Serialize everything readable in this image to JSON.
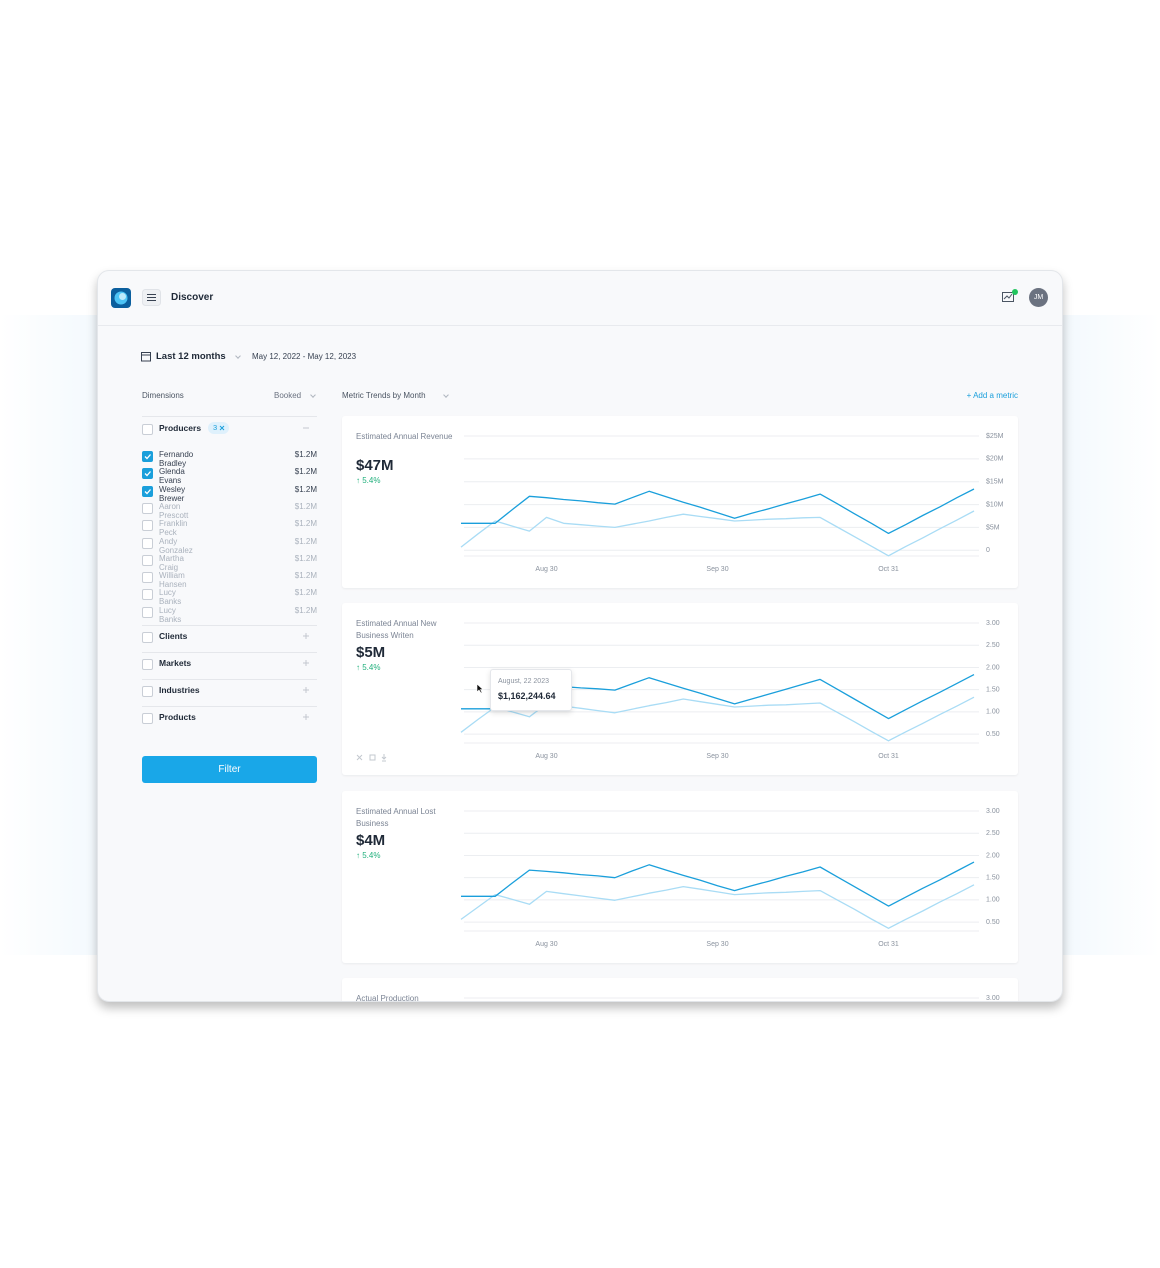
{
  "header": {
    "title": "Discover",
    "avatar": "JM"
  },
  "date_filter": {
    "period": "Last 12 months",
    "range": "May 12, 2022 - May 12, 2023"
  },
  "dimensions": {
    "title": "Dimensions",
    "measure": "Booked",
    "groups": [
      {
        "label": "Producers",
        "selected_count": 3,
        "expanded": true,
        "items": [
          {
            "label": "Fernando Bradley",
            "amount": "$1.2M",
            "checked": true
          },
          {
            "label": "Glenda Evans",
            "amount": "$1.2M",
            "checked": true
          },
          {
            "label": "Wesley Brewer",
            "amount": "$1.2M",
            "checked": true
          },
          {
            "label": "Aaron Prescott",
            "amount": "$1.2M",
            "checked": false
          },
          {
            "label": "Franklin Peck",
            "amount": "$1.2M",
            "checked": false
          },
          {
            "label": "Andy Gonzalez",
            "amount": "$1.2M",
            "checked": false
          },
          {
            "label": "Martha Craig",
            "amount": "$1.2M",
            "checked": false
          },
          {
            "label": "William Hansen",
            "amount": "$1.2M",
            "checked": false
          },
          {
            "label": "Lucy Banks",
            "amount": "$1.2M",
            "checked": false
          },
          {
            "label": "Lucy Banks",
            "amount": "$1.2M",
            "checked": false
          }
        ]
      },
      {
        "label": "Clients",
        "expanded": false
      },
      {
        "label": "Markets",
        "expanded": false
      },
      {
        "label": "Industries",
        "expanded": false
      },
      {
        "label": "Products",
        "expanded": false
      }
    ],
    "button": "Filter"
  },
  "metrics": {
    "title": "Metric Trends by Month",
    "add": "+ Add a metric"
  },
  "chart_data": [
    {
      "type": "line",
      "title": "Estimated Annual Revenue",
      "kpi": "$47M",
      "change": "↑ 5.4%",
      "categories": [
        null,
        null,
        null,
        null,
        null,
        "Aug 30",
        null,
        null,
        null,
        null,
        null,
        null,
        null,
        null,
        null,
        "Sep 30",
        null,
        null,
        null,
        null,
        null,
        null,
        null,
        null,
        null,
        "Oct 31",
        null,
        null,
        null,
        null,
        null
      ],
      "series": [
        {
          "color": "#1a9fdb",
          "values": [
            5.9,
            5.9,
            5.9,
            8.9,
            11.8,
            11.5,
            11.1,
            10.8,
            10.4,
            10.1,
            11.5,
            12.9,
            11.7,
            10.5,
            9.4,
            8.2,
            7.0,
            8.1,
            9.1,
            10.2,
            11.2,
            12.3,
            10.2,
            8.0,
            5.9,
            3.7,
            5.6,
            7.6,
            9.5,
            11.5,
            13.4
          ]
        },
        {
          "color": "#a9dcf5",
          "values": [
            0.7,
            3.6,
            6.4,
            5.3,
            4.2,
            7.2,
            5.9,
            5.6,
            5.3,
            5.0,
            5.7,
            6.4,
            7.2,
            7.9,
            7.4,
            6.9,
            6.4,
            6.6,
            6.8,
            6.9,
            7.1,
            7.2,
            5.1,
            3.0,
            0.9,
            -1.2,
            0.8,
            2.7,
            4.7,
            6.6,
            8.6
          ]
        }
      ],
      "ylim": [
        -1.25,
        25
      ],
      "yticks": [
        {
          "value": 25,
          "label": "$25M"
        },
        {
          "value": 20,
          "label": "$20M"
        },
        {
          "value": 15,
          "label": "$15M"
        },
        {
          "value": 10,
          "label": "$10M"
        },
        {
          "value": 5,
          "label": "$5M"
        },
        0
      ],
      "grid": true
    },
    {
      "type": "line",
      "title": "Estimated Annual New Business Writen",
      "kpi": "$5M",
      "change": "↑ 5.4%",
      "categories": [
        null,
        null,
        null,
        null,
        null,
        "Aug 30",
        null,
        null,
        null,
        null,
        null,
        null,
        null,
        null,
        null,
        "Sep 30",
        null,
        null,
        null,
        null,
        null,
        null,
        null,
        null,
        null,
        "Oct 31",
        null,
        null,
        null,
        null,
        null
      ],
      "series": [
        {
          "color": "#1a9fdb",
          "values": [
            1.07,
            1.07,
            1.07,
            1.35,
            1.62,
            1.59,
            1.57,
            1.54,
            1.52,
            1.49,
            1.63,
            1.77,
            1.65,
            1.53,
            1.42,
            1.3,
            1.18,
            1.29,
            1.4,
            1.51,
            1.62,
            1.73,
            1.51,
            1.29,
            1.07,
            0.85,
            1.05,
            1.25,
            1.44,
            1.64,
            1.84
          ]
        },
        {
          "color": "#a9dcf5",
          "values": [
            0.54,
            0.83,
            1.11,
            1.0,
            0.89,
            1.18,
            1.13,
            1.08,
            1.03,
            0.98,
            1.06,
            1.14,
            1.21,
            1.29,
            1.23,
            1.17,
            1.11,
            1.13,
            1.15,
            1.16,
            1.18,
            1.2,
            0.99,
            0.78,
            0.56,
            0.35,
            0.55,
            0.74,
            0.94,
            1.13,
            1.33
          ]
        }
      ],
      "ylim": [
        0.3,
        3
      ],
      "yticks": [
        {
          "value": 3,
          "label": "3.00"
        },
        {
          "value": 2.5,
          "label": "2.50"
        },
        {
          "value": 2,
          "label": "2.00"
        },
        {
          "value": 1.5,
          "label": "1.50"
        },
        {
          "value": 1,
          "label": "1.00"
        },
        {
          "value": 0.5,
          "label": "0.50"
        }
      ],
      "grid": true,
      "tooltip": {
        "date": "August, 22 2023",
        "value": "$1,162,244.64"
      }
    },
    {
      "type": "line",
      "title": "Estimated Annual Lost Business",
      "kpi": "$4M",
      "change": "↑ 5.4%",
      "categories": [
        null,
        null,
        null,
        null,
        null,
        "Aug 30",
        null,
        null,
        null,
        null,
        null,
        null,
        null,
        null,
        null,
        "Sep 30",
        null,
        null,
        null,
        null,
        null,
        null,
        null,
        null,
        null,
        "Oct 31",
        null,
        null,
        null,
        null,
        null
      ],
      "series": [
        {
          "color": "#1a9fdb",
          "values": [
            1.08,
            1.08,
            1.08,
            1.38,
            1.67,
            1.64,
            1.61,
            1.57,
            1.54,
            1.5,
            1.65,
            1.79,
            1.67,
            1.55,
            1.44,
            1.32,
            1.21,
            1.32,
            1.42,
            1.53,
            1.63,
            1.74,
            1.52,
            1.3,
            1.08,
            0.86,
            1.06,
            1.26,
            1.45,
            1.65,
            1.85
          ]
        },
        {
          "color": "#a9dcf5",
          "values": [
            0.56,
            0.84,
            1.12,
            1.01,
            0.9,
            1.19,
            1.14,
            1.09,
            1.04,
            0.99,
            1.07,
            1.15,
            1.22,
            1.3,
            1.24,
            1.18,
            1.12,
            1.14,
            1.16,
            1.17,
            1.19,
            1.21,
            1.0,
            0.79,
            0.57,
            0.36,
            0.56,
            0.75,
            0.95,
            1.14,
            1.34
          ]
        }
      ],
      "ylim": [
        0.3,
        3
      ],
      "yticks": [
        {
          "value": 3,
          "label": "3.00"
        },
        {
          "value": 2.5,
          "label": "2.50"
        },
        {
          "value": 2,
          "label": "2.00"
        },
        {
          "value": 1.5,
          "label": "1.50"
        },
        {
          "value": 1,
          "label": "1.00"
        },
        {
          "value": 0.5,
          "label": "0.50"
        }
      ],
      "grid": true
    },
    {
      "type": "line",
      "title": "Actual Production",
      "ylim": [
        0.3,
        3
      ],
      "yticks": [
        {
          "value": 3,
          "label": "3.00"
        }
      ],
      "grid": true
    }
  ]
}
